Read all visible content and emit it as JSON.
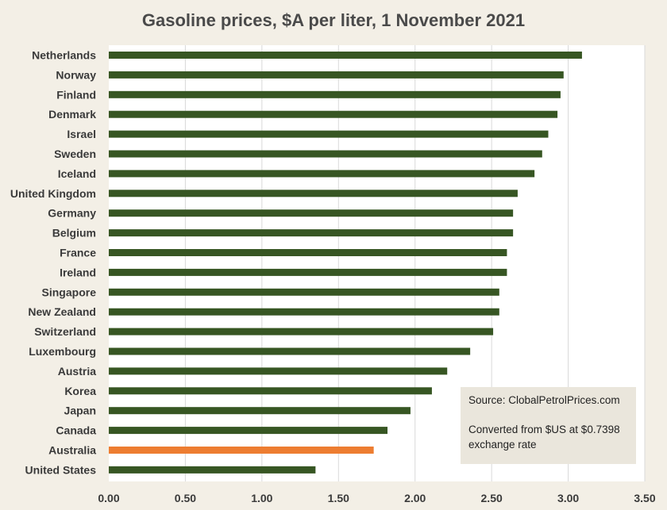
{
  "chart_data": {
    "type": "bar",
    "orientation": "horizontal",
    "title": "Gasoline prices, $A per liter, 1 November 2021",
    "xlim": [
      0,
      3.5
    ],
    "ticks": [
      "0.00",
      "0.50",
      "1.00",
      "1.50",
      "2.00",
      "2.50",
      "3.00",
      "3.50"
    ],
    "grid": true,
    "categories": [
      "Netherlands",
      "Norway",
      "Finland",
      "Denmark",
      "Israel",
      "Sweden",
      "Iceland",
      "United Kingdom",
      "Germany",
      "Belgium",
      "France",
      "Ireland",
      "Singapore",
      "New Zealand",
      "Switzerland",
      "Luxembourg",
      "Austria",
      "Korea",
      "Japan",
      "Canada",
      "Australia",
      "United States"
    ],
    "values": [
      3.09,
      2.97,
      2.95,
      2.93,
      2.87,
      2.83,
      2.78,
      2.67,
      2.64,
      2.64,
      2.6,
      2.6,
      2.55,
      2.55,
      2.51,
      2.36,
      2.21,
      2.11,
      1.97,
      1.82,
      1.73,
      1.35
    ],
    "highlight": "Australia",
    "bar_color": "#375623",
    "highlight_color": "#ED7D31",
    "annotation": {
      "source": "Source: ClobalPetrolPrices.com",
      "note_line1": "Converted from $US at $0.7398",
      "note_line2": "exchange rate"
    }
  },
  "colors": {
    "page_background": "#F3EFE6",
    "plot_background": "#FFFFFF",
    "gridline": "#D9D9D9",
    "annotation_background": "#EAE6DC"
  }
}
